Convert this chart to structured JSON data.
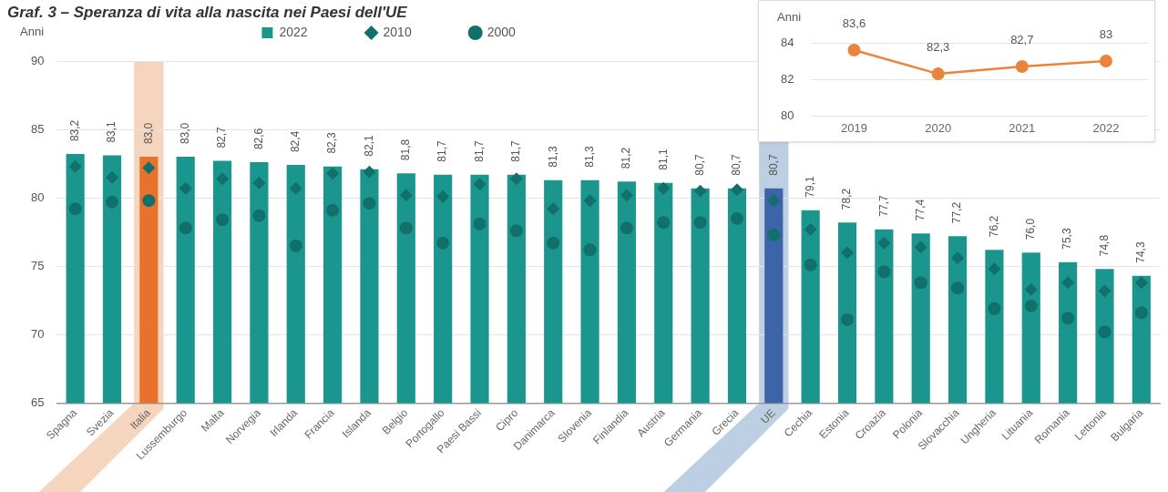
{
  "chart_data": [
    {
      "type": "bar",
      "title": "Graf. 3 – Speranza di vita alla nascita nei Paesi dell'UE",
      "ylabel": "Anni",
      "categories": [
        "Spagna",
        "Svezia",
        "Italia",
        "Lussemburgo",
        "Malta",
        "Norvegia",
        "Irlanda",
        "Francia",
        "Islanda",
        "Belgio",
        "Portogallo",
        "Paesi Bassi",
        "Cipro",
        "Danimarca",
        "Slovenia",
        "Finlandia",
        "Austria",
        "Germania",
        "Grecia",
        "UE",
        "Cechia",
        "Estonia",
        "Croazia",
        "Polonia",
        "Slovacchia",
        "Ungheria",
        "Lituania",
        "Romania",
        "Lettonia",
        "Bulgaria"
      ],
      "series": [
        {
          "name": "2022",
          "type": "bar",
          "color": "#1b968f",
          "colors": [
            "#1b968f",
            "#1b968f",
            "#e8722b",
            "#1b968f",
            "#1b968f",
            "#1b968f",
            "#1b968f",
            "#1b968f",
            "#1b968f",
            "#1b968f",
            "#1b968f",
            "#1b968f",
            "#1b968f",
            "#1b968f",
            "#1b968f",
            "#1b968f",
            "#1b968f",
            "#1b968f",
            "#1b968f",
            "#3d64a8",
            "#1b968f",
            "#1b968f",
            "#1b968f",
            "#1b968f",
            "#1b968f",
            "#1b968f",
            "#1b968f",
            "#1b968f",
            "#1b968f",
            "#1b968f"
          ],
          "values": [
            83.2,
            83.1,
            83.0,
            83.0,
            82.7,
            82.6,
            82.4,
            82.3,
            82.1,
            81.8,
            81.7,
            81.7,
            81.7,
            81.3,
            81.3,
            81.2,
            81.1,
            80.7,
            80.7,
            80.7,
            79.1,
            78.2,
            77.7,
            77.4,
            77.2,
            76.2,
            76.0,
            75.3,
            74.8,
            74.3
          ],
          "value_labels": [
            "83,2",
            "83,1",
            "83,0",
            "83,0",
            "82,7",
            "82,6",
            "82,4",
            "82,3",
            "82,1",
            "81,8",
            "81,7",
            "81,7",
            "81,7",
            "81,3",
            "81,3",
            "81,2",
            "81,1",
            "80,7",
            "80,7",
            "80,7",
            "79,1",
            "78,2",
            "77,7",
            "77,4",
            "77,2",
            "76,2",
            "76,0",
            "75,3",
            "74,8",
            "74,3"
          ]
        },
        {
          "name": "2010",
          "type": "scatter",
          "marker": "diamond",
          "color": "#11706a",
          "values": [
            82.3,
            81.5,
            82.2,
            80.7,
            81.4,
            81.1,
            80.7,
            81.8,
            81.9,
            80.2,
            80.1,
            81.0,
            81.4,
            79.2,
            79.8,
            80.2,
            80.7,
            80.5,
            80.6,
            79.8,
            77.7,
            76.0,
            76.7,
            76.4,
            75.6,
            74.8,
            73.3,
            73.8,
            73.2,
            73.8
          ]
        },
        {
          "name": "2000",
          "type": "scatter",
          "marker": "circle",
          "color": "#11706a",
          "values": [
            79.2,
            79.7,
            79.8,
            77.8,
            78.4,
            78.7,
            76.5,
            79.1,
            79.6,
            77.8,
            76.7,
            78.1,
            77.6,
            76.7,
            76.2,
            77.8,
            78.2,
            78.2,
            78.5,
            77.3,
            75.1,
            71.1,
            74.6,
            73.8,
            73.4,
            71.9,
            72.1,
            71.2,
            70.2,
            71.6
          ]
        }
      ],
      "ylim": [
        65,
        90
      ],
      "yticks": [
        65,
        70,
        75,
        80,
        85,
        90
      ],
      "grid": "y",
      "legend": "top",
      "bands": [
        {
          "axis": "x",
          "from": "Italia",
          "to": "Italia",
          "color": "#f5d5be"
        },
        {
          "axis": "x",
          "from": "UE",
          "to": "UE",
          "color": "#bdd0e3"
        }
      ]
    },
    {
      "type": "line",
      "ylabel": "Anni",
      "categories": [
        "2019",
        "2020",
        "2021",
        "2022"
      ],
      "series": [
        {
          "color": "#e9843a",
          "values": [
            83.6,
            82.3,
            82.7,
            83
          ],
          "value_labels": [
            "83,6",
            "82,3",
            "82,7",
            "83"
          ]
        }
      ],
      "ylim": [
        80,
        84
      ],
      "yticks": [
        80,
        82,
        84
      ],
      "grid": "y",
      "marker": "circle"
    }
  ]
}
